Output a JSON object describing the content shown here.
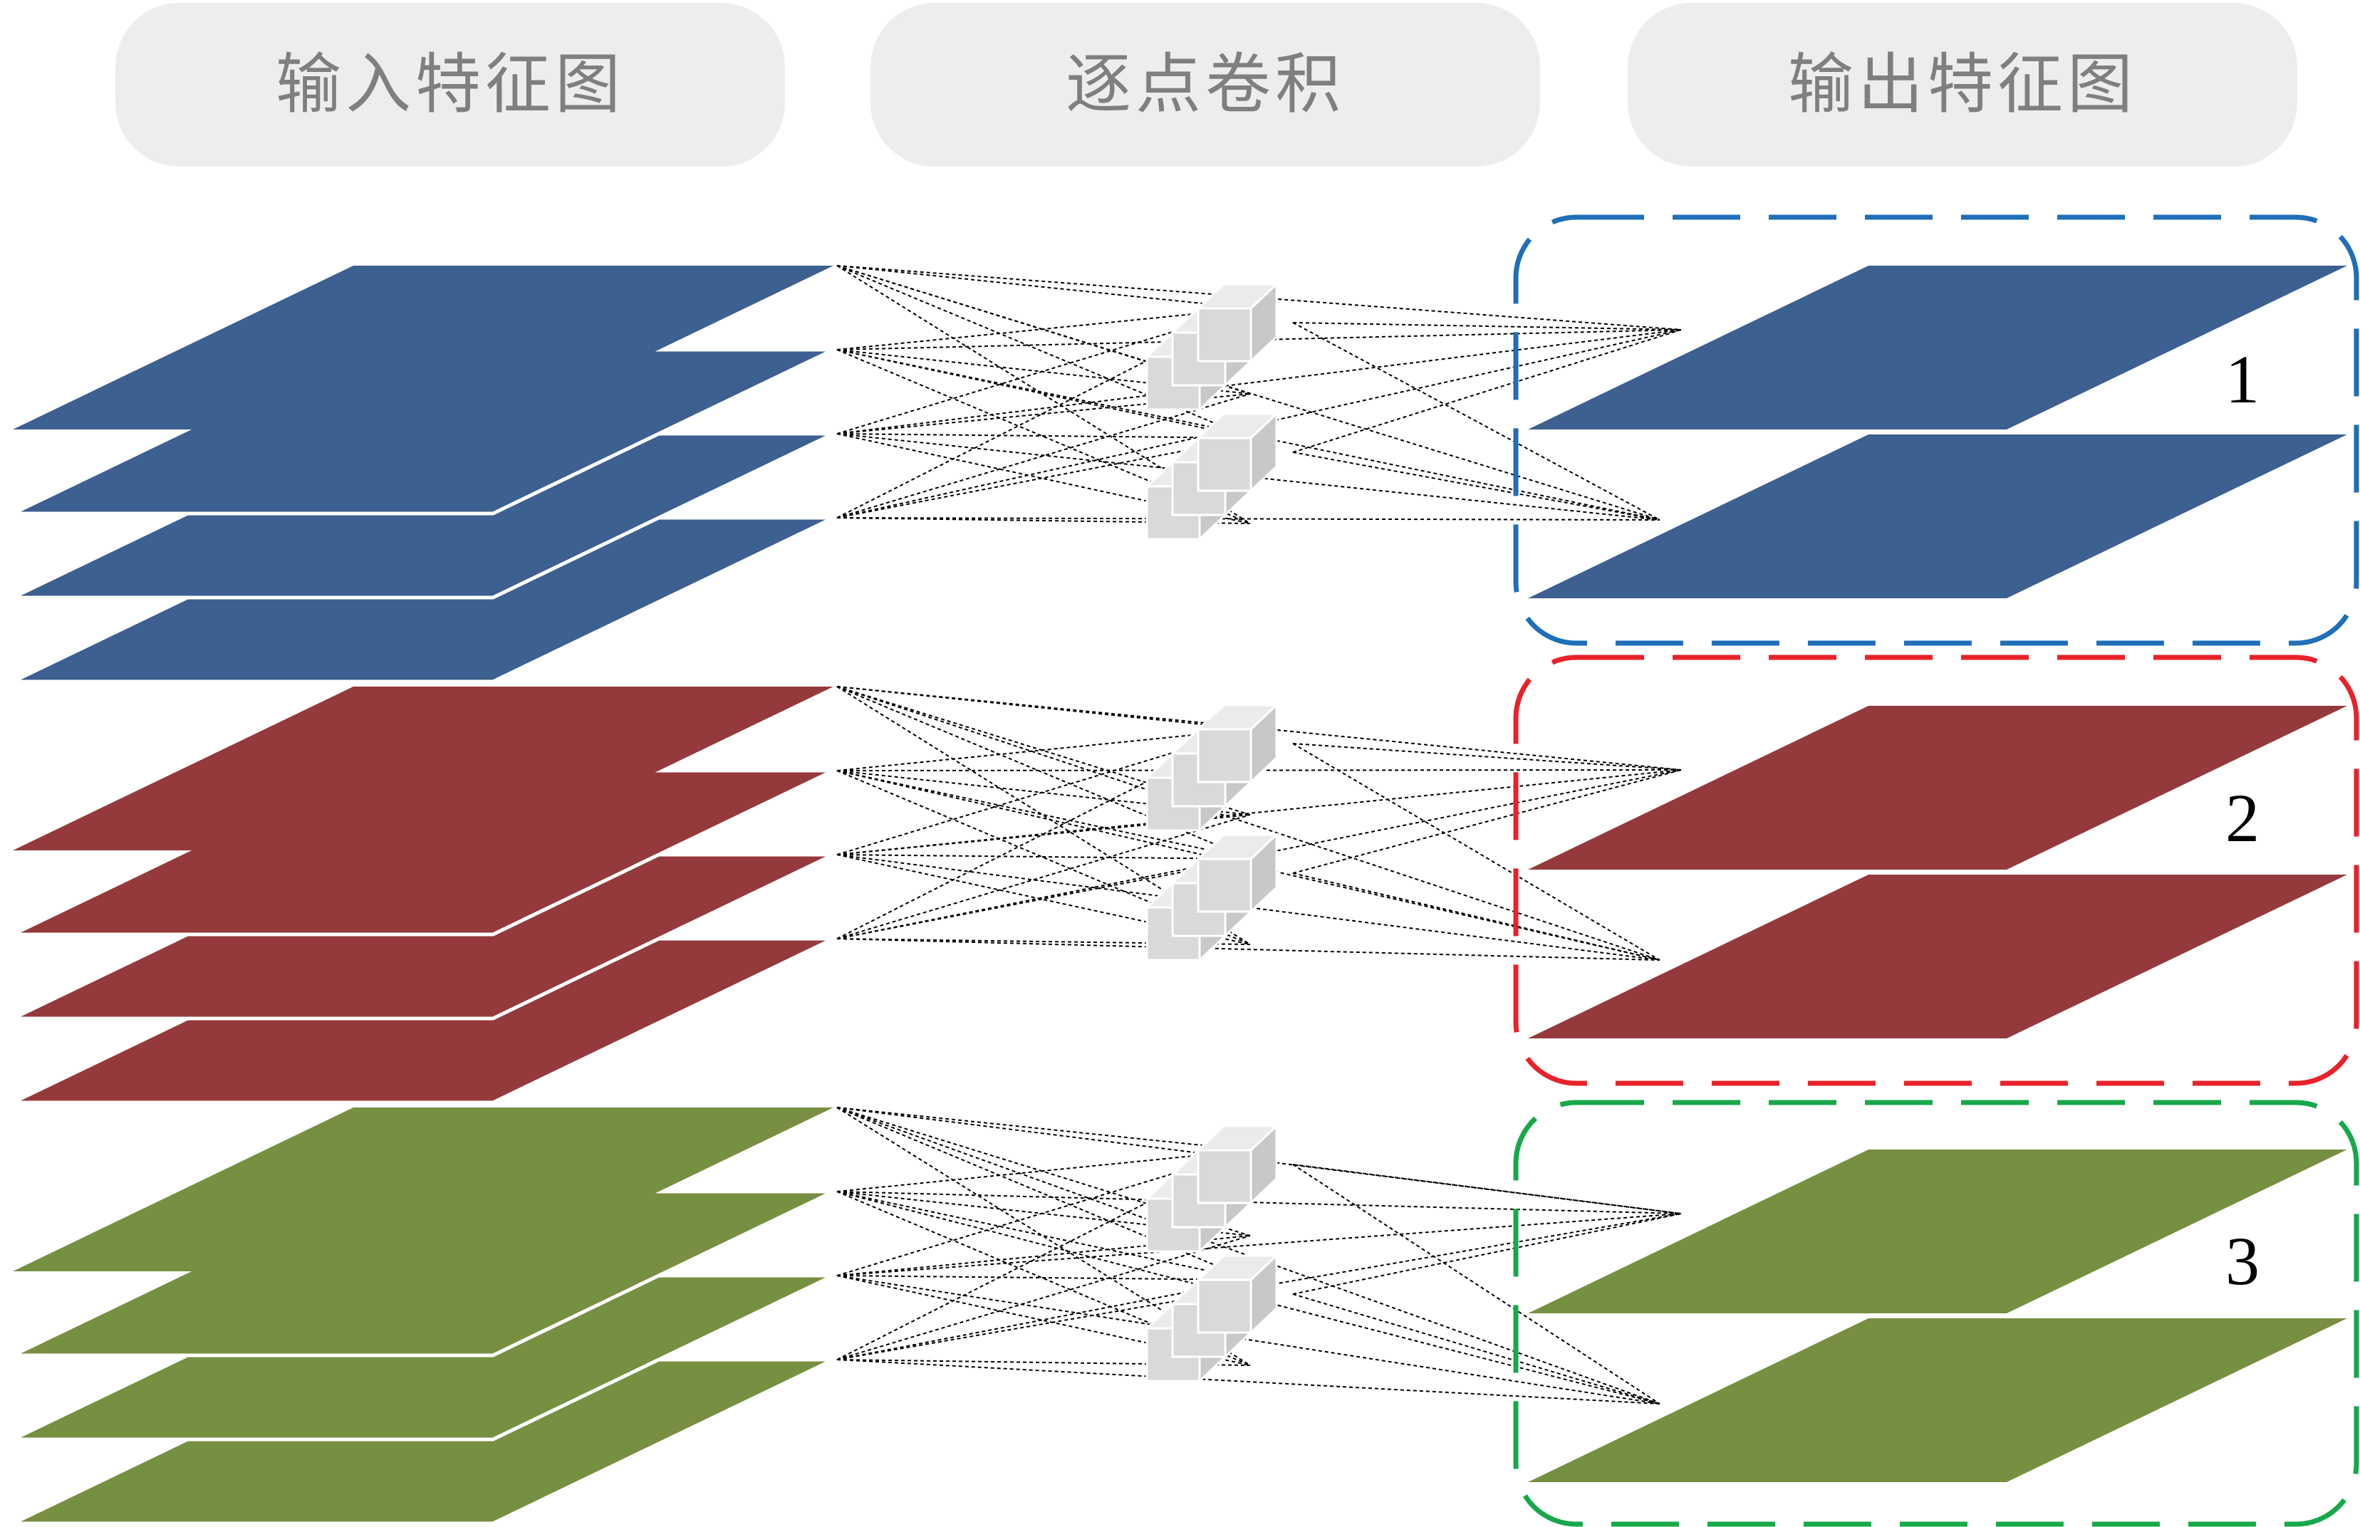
{
  "headers": [
    {
      "id": "input",
      "label": "输入特征图"
    },
    {
      "id": "conv",
      "label": "逐点卷积"
    },
    {
      "id": "output",
      "label": "输出特征图"
    }
  ],
  "groups": [
    {
      "label": "1",
      "color": "#3c608f",
      "box_color": "#1f6fb8"
    },
    {
      "label": "2",
      "color": "#943a3c",
      "box_color": "#e8222a"
    },
    {
      "label": "3",
      "color": "#778f41",
      "box_color": "#17a84a"
    }
  ],
  "input_maps_per_group": 4,
  "kernels_per_group": 2,
  "output_maps_per_group": 2,
  "kernel_color": "#d9d9d9",
  "connection_color": "#000000"
}
